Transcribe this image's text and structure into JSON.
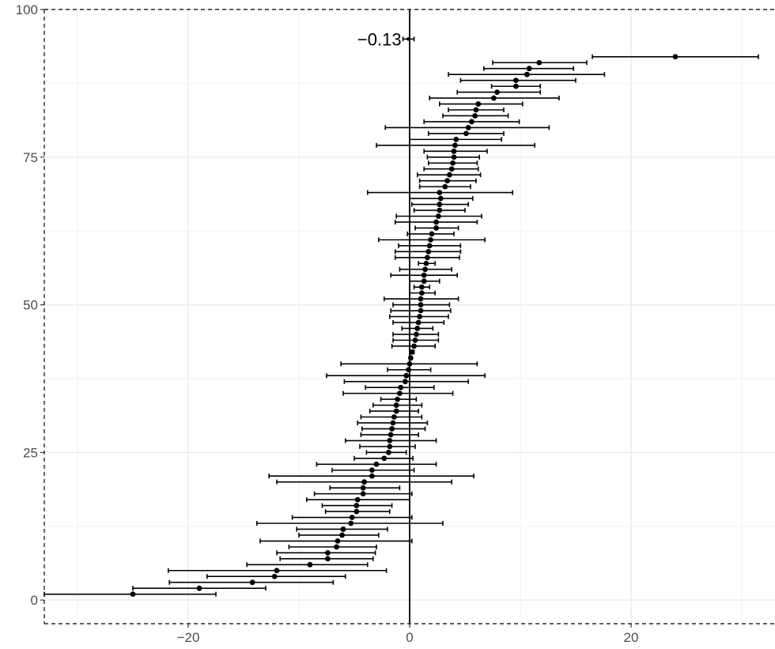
{
  "chart_data": {
    "type": "scatter",
    "subtype": "forest-plot-with-error-bars",
    "title": "",
    "xlabel": "",
    "ylabel": "",
    "xlim": [
      -33,
      33
    ],
    "ylim": [
      -4,
      100
    ],
    "x_ticks": [
      -20,
      0,
      20
    ],
    "x_tick_labels": [
      "−20",
      "0",
      "20"
    ],
    "y_ticks": [
      0,
      25,
      50,
      75,
      100
    ],
    "y_tick_labels": [
      "0",
      "25",
      "50",
      "75",
      "100"
    ],
    "grid": true,
    "reference_line_x": 0,
    "annotation": {
      "text": "−0.13",
      "x": -0.13,
      "y": 95
    },
    "summary_point": {
      "x": -0.13,
      "y": 95,
      "lo": -0.6,
      "hi": 0.4
    },
    "points": [
      {
        "rank": 1,
        "x": -25.0,
        "lo": -33.0,
        "hi": -17.5
      },
      {
        "rank": 2,
        "x": -19.0,
        "lo": -25.0,
        "hi": -13.0
      },
      {
        "rank": 3,
        "x": -14.2,
        "lo": -21.7,
        "hi": -6.9
      },
      {
        "rank": 4,
        "x": -12.2,
        "lo": -18.3,
        "hi": -5.8
      },
      {
        "rank": 5,
        "x": -12.0,
        "lo": -21.8,
        "hi": -2.1
      },
      {
        "rank": 6,
        "x": -9.0,
        "lo": -14.7,
        "hi": -3.8
      },
      {
        "rank": 7,
        "x": -7.4,
        "lo": -11.7,
        "hi": -3.3
      },
      {
        "rank": 8,
        "x": -7.4,
        "lo": -12.0,
        "hi": -3.1
      },
      {
        "rank": 9,
        "x": -6.6,
        "lo": -10.9,
        "hi": -3.0
      },
      {
        "rank": 10,
        "x": -6.5,
        "lo": -13.5,
        "hi": 0.2
      },
      {
        "rank": 11,
        "x": -6.1,
        "lo": -10.0,
        "hi": -2.8
      },
      {
        "rank": 12,
        "x": -6.0,
        "lo": -10.2,
        "hi": -2.0
      },
      {
        "rank": 13,
        "x": -5.3,
        "lo": -13.8,
        "hi": 3.0
      },
      {
        "rank": 14,
        "x": -5.2,
        "lo": -10.6,
        "hi": 0.2
      },
      {
        "rank": 15,
        "x": -4.8,
        "lo": -7.6,
        "hi": -1.8
      },
      {
        "rank": 16,
        "x": -4.8,
        "lo": -7.9,
        "hi": -1.6
      },
      {
        "rank": 17,
        "x": -4.7,
        "lo": -9.3,
        "hi": 0.0
      },
      {
        "rank": 18,
        "x": -4.2,
        "lo": -8.6,
        "hi": 0.2
      },
      {
        "rank": 19,
        "x": -4.2,
        "lo": -7.2,
        "hi": -0.9
      },
      {
        "rank": 20,
        "x": -4.1,
        "lo": -12.0,
        "hi": 3.8
      },
      {
        "rank": 21,
        "x": -3.4,
        "lo": -12.7,
        "hi": 5.8
      },
      {
        "rank": 22,
        "x": -3.4,
        "lo": -7.0,
        "hi": 0.4
      },
      {
        "rank": 23,
        "x": -3.0,
        "lo": -8.4,
        "hi": 2.4
      },
      {
        "rank": 24,
        "x": -2.3,
        "lo": -5.0,
        "hi": 0.3
      },
      {
        "rank": 25,
        "x": -1.9,
        "lo": -3.9,
        "hi": -0.3
      },
      {
        "rank": 26,
        "x": -1.8,
        "lo": -4.5,
        "hi": 0.5
      },
      {
        "rank": 27,
        "x": -1.8,
        "lo": -5.8,
        "hi": 2.4
      },
      {
        "rank": 28,
        "x": -1.7,
        "lo": -4.4,
        "hi": 0.8
      },
      {
        "rank": 29,
        "x": -1.6,
        "lo": -4.3,
        "hi": 1.4
      },
      {
        "rank": 30,
        "x": -1.5,
        "lo": -4.7,
        "hi": 1.6
      },
      {
        "rank": 31,
        "x": -1.4,
        "lo": -4.4,
        "hi": 1.1
      },
      {
        "rank": 32,
        "x": -1.2,
        "lo": -3.6,
        "hi": 0.8
      },
      {
        "rank": 33,
        "x": -1.2,
        "lo": -3.3,
        "hi": 1.1
      },
      {
        "rank": 34,
        "x": -1.1,
        "lo": -2.6,
        "hi": 0.6
      },
      {
        "rank": 35,
        "x": -0.9,
        "lo": -6.0,
        "hi": 3.9
      },
      {
        "rank": 36,
        "x": -0.8,
        "lo": -4.0,
        "hi": 2.2
      },
      {
        "rank": 37,
        "x": -0.4,
        "lo": -5.9,
        "hi": 5.3
      },
      {
        "rank": 38,
        "x": -0.3,
        "lo": -7.5,
        "hi": 6.8
      },
      {
        "rank": 39,
        "x": -0.1,
        "lo": -2.0,
        "hi": 1.9
      },
      {
        "rank": 40,
        "x": 0.0,
        "lo": -6.2,
        "hi": 6.1
      },
      {
        "rank": 41,
        "x": 0.1,
        "lo": 0.0,
        "hi": 0.2
      },
      {
        "rank": 42,
        "x": 0.2,
        "lo": 0.0,
        "hi": 0.4
      },
      {
        "rank": 43,
        "x": 0.4,
        "lo": -1.6,
        "hi": 2.3
      },
      {
        "rank": 44,
        "x": 0.5,
        "lo": -1.5,
        "hi": 2.6
      },
      {
        "rank": 45,
        "x": 0.6,
        "lo": -1.5,
        "hi": 2.6
      },
      {
        "rank": 46,
        "x": 0.7,
        "lo": -0.7,
        "hi": 2.1
      },
      {
        "rank": 47,
        "x": 0.8,
        "lo": -1.5,
        "hi": 3.1
      },
      {
        "rank": 48,
        "x": 0.9,
        "lo": -1.8,
        "hi": 3.5
      },
      {
        "rank": 49,
        "x": 1.0,
        "lo": -1.7,
        "hi": 3.7
      },
      {
        "rank": 50,
        "x": 1.0,
        "lo": -1.5,
        "hi": 3.6
      },
      {
        "rank": 51,
        "x": 1.0,
        "lo": -2.3,
        "hi": 4.4
      },
      {
        "rank": 52,
        "x": 1.1,
        "lo": 0.0,
        "hi": 2.3
      },
      {
        "rank": 53,
        "x": 1.1,
        "lo": 0.4,
        "hi": 1.8
      },
      {
        "rank": 54,
        "x": 1.3,
        "lo": 0.0,
        "hi": 2.7
      },
      {
        "rank": 55,
        "x": 1.3,
        "lo": -1.7,
        "hi": 4.3
      },
      {
        "rank": 56,
        "x": 1.4,
        "lo": -0.9,
        "hi": 3.8
      },
      {
        "rank": 57,
        "x": 1.5,
        "lo": 0.8,
        "hi": 2.3
      },
      {
        "rank": 58,
        "x": 1.6,
        "lo": -1.3,
        "hi": 4.5
      },
      {
        "rank": 59,
        "x": 1.7,
        "lo": -1.3,
        "hi": 4.6
      },
      {
        "rank": 60,
        "x": 1.8,
        "lo": -1.0,
        "hi": 4.6
      },
      {
        "rank": 61,
        "x": 1.9,
        "lo": -2.8,
        "hi": 6.8
      },
      {
        "rank": 62,
        "x": 2.0,
        "lo": -0.2,
        "hi": 4.0
      },
      {
        "rank": 63,
        "x": 2.4,
        "lo": 0.5,
        "hi": 4.4
      },
      {
        "rank": 64,
        "x": 2.4,
        "lo": -1.3,
        "hi": 6.1
      },
      {
        "rank": 65,
        "x": 2.6,
        "lo": -1.2,
        "hi": 6.5
      },
      {
        "rank": 66,
        "x": 2.7,
        "lo": 0.4,
        "hi": 5.0
      },
      {
        "rank": 67,
        "x": 2.7,
        "lo": 0.2,
        "hi": 5.3
      },
      {
        "rank": 68,
        "x": 2.8,
        "lo": 0.0,
        "hi": 5.7
      },
      {
        "rank": 69,
        "x": 2.7,
        "lo": -3.8,
        "hi": 9.3
      },
      {
        "rank": 70,
        "x": 3.2,
        "lo": 0.9,
        "hi": 5.5
      },
      {
        "rank": 71,
        "x": 3.4,
        "lo": 0.9,
        "hi": 6.0
      },
      {
        "rank": 72,
        "x": 3.6,
        "lo": 0.7,
        "hi": 6.4
      },
      {
        "rank": 73,
        "x": 3.8,
        "lo": 1.3,
        "hi": 6.2
      },
      {
        "rank": 74,
        "x": 3.9,
        "lo": 1.7,
        "hi": 6.1
      },
      {
        "rank": 75,
        "x": 4.0,
        "lo": 1.6,
        "hi": 6.3
      },
      {
        "rank": 76,
        "x": 4.0,
        "lo": 1.3,
        "hi": 7.0
      },
      {
        "rank": 77,
        "x": 4.1,
        "lo": -3.0,
        "hi": 11.3
      },
      {
        "rank": 78,
        "x": 4.2,
        "lo": 0.0,
        "hi": 8.3
      },
      {
        "rank": 79,
        "x": 5.1,
        "lo": 1.7,
        "hi": 8.5
      },
      {
        "rank": 80,
        "x": 5.3,
        "lo": -2.2,
        "hi": 12.6
      },
      {
        "rank": 81,
        "x": 5.6,
        "lo": 1.3,
        "hi": 9.9
      },
      {
        "rank": 82,
        "x": 5.9,
        "lo": 3.0,
        "hi": 8.9
      },
      {
        "rank": 83,
        "x": 6.0,
        "lo": 3.5,
        "hi": 8.5
      },
      {
        "rank": 84,
        "x": 6.2,
        "lo": 2.7,
        "hi": 10.2
      },
      {
        "rank": 85,
        "x": 7.6,
        "lo": 1.8,
        "hi": 13.5
      },
      {
        "rank": 86,
        "x": 7.9,
        "lo": 4.3,
        "hi": 11.8
      },
      {
        "rank": 87,
        "x": 9.6,
        "lo": 7.4,
        "hi": 11.8
      },
      {
        "rank": 88,
        "x": 9.6,
        "lo": 4.6,
        "hi": 15.0
      },
      {
        "rank": 89,
        "x": 10.6,
        "lo": 3.5,
        "hi": 17.6
      },
      {
        "rank": 90,
        "x": 10.8,
        "lo": 6.7,
        "hi": 14.8
      },
      {
        "rank": 91,
        "x": 11.7,
        "lo": 7.5,
        "hi": 16.0
      },
      {
        "rank": 92,
        "x": 24.0,
        "lo": 16.5,
        "hi": 31.5
      }
    ]
  }
}
